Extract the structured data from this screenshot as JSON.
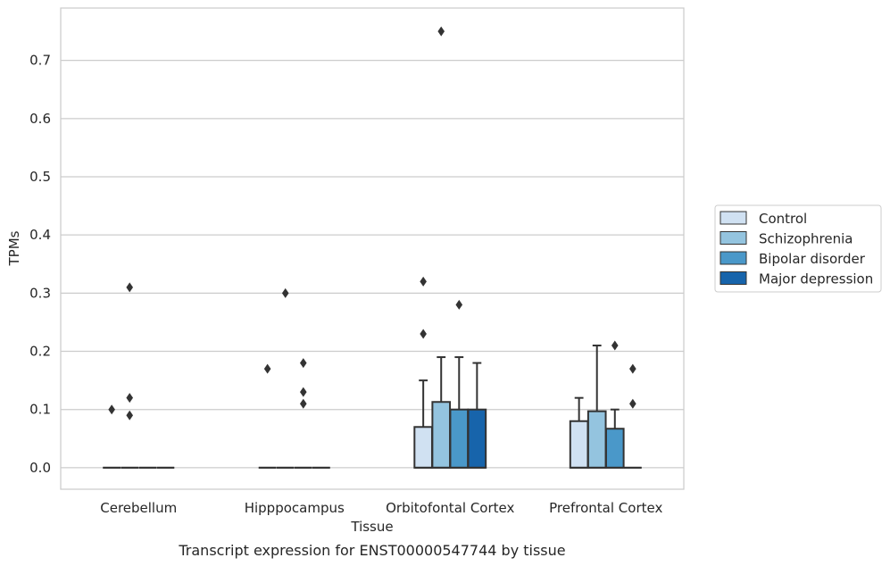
{
  "chart_data": {
    "type": "box",
    "title": "",
    "caption": "Transcript expression for ENST00000547744 by tissue",
    "xlabel": "Tissue",
    "ylabel": "TPMs",
    "ylim": [
      -0.037,
      0.79
    ],
    "yticks": [
      0.0,
      0.1,
      0.2,
      0.3,
      0.4,
      0.5,
      0.6,
      0.7
    ],
    "ytick_labels": [
      "0.0",
      "0.1",
      "0.2",
      "0.3",
      "0.4",
      "0.5",
      "0.6",
      "0.7"
    ],
    "grid": "horizontal",
    "legend_placement": "right",
    "categories": [
      "Cerebellum",
      "Hipppocampus",
      "Orbitofontal Cortex",
      "Prefrontal Cortex"
    ],
    "series": [
      {
        "name": "Control",
        "color": "#d0e1f2",
        "boxes": [
          {
            "q1": 0,
            "median": 0,
            "q3": 0,
            "whisker_low": 0,
            "whisker_high": 0,
            "outliers": [
              0.1
            ]
          },
          {
            "q1": 0,
            "median": 0,
            "q3": 0,
            "whisker_low": 0,
            "whisker_high": 0,
            "outliers": [
              0.17
            ]
          },
          {
            "q1": 0,
            "median": 0,
            "q3": 0.07,
            "whisker_low": 0,
            "whisker_high": 0.15,
            "outliers": [
              0.32,
              0.23
            ]
          },
          {
            "q1": 0,
            "median": 0,
            "q3": 0.08,
            "whisker_low": 0,
            "whisker_high": 0.12,
            "outliers": []
          }
        ]
      },
      {
        "name": "Schizophrenia",
        "color": "#94c4df",
        "boxes": [
          {
            "q1": 0,
            "median": 0,
            "q3": 0,
            "whisker_low": 0,
            "whisker_high": 0,
            "outliers": [
              0.31,
              0.12,
              0.09
            ]
          },
          {
            "q1": 0,
            "median": 0,
            "q3": 0,
            "whisker_low": 0,
            "whisker_high": 0,
            "outliers": [
              0.3
            ]
          },
          {
            "q1": 0,
            "median": 0,
            "q3": 0.113,
            "whisker_low": 0,
            "whisker_high": 0.19,
            "outliers": [
              0.75
            ]
          },
          {
            "q1": 0,
            "median": 0,
            "q3": 0.097,
            "whisker_low": 0,
            "whisker_high": 0.21,
            "outliers": []
          }
        ]
      },
      {
        "name": "Bipolar disorder",
        "color": "#4a98c9",
        "boxes": [
          {
            "q1": 0,
            "median": 0,
            "q3": 0,
            "whisker_low": 0,
            "whisker_high": 0,
            "outliers": []
          },
          {
            "q1": 0,
            "median": 0,
            "q3": 0,
            "whisker_low": 0,
            "whisker_high": 0,
            "outliers": [
              0.18,
              0.13,
              0.11
            ]
          },
          {
            "q1": 0,
            "median": 0,
            "q3": 0.1,
            "whisker_low": 0,
            "whisker_high": 0.19,
            "outliers": [
              0.28
            ]
          },
          {
            "q1": 0,
            "median": 0,
            "q3": 0.067,
            "whisker_low": 0,
            "whisker_high": 0.1,
            "outliers": [
              0.21
            ]
          }
        ]
      },
      {
        "name": "Major depression",
        "color": "#1764ab",
        "boxes": [
          {
            "q1": 0,
            "median": 0,
            "q3": 0,
            "whisker_low": 0,
            "whisker_high": 0,
            "outliers": []
          },
          {
            "q1": 0,
            "median": 0,
            "q3": 0,
            "whisker_low": 0,
            "whisker_high": 0,
            "outliers": []
          },
          {
            "q1": 0,
            "median": 0,
            "q3": 0.1,
            "whisker_low": 0,
            "whisker_high": 0.18,
            "outliers": []
          },
          {
            "q1": 0,
            "median": 0,
            "q3": 0,
            "whisker_low": 0,
            "whisker_high": 0,
            "outliers": [
              0.17,
              0.11
            ]
          }
        ]
      }
    ]
  }
}
